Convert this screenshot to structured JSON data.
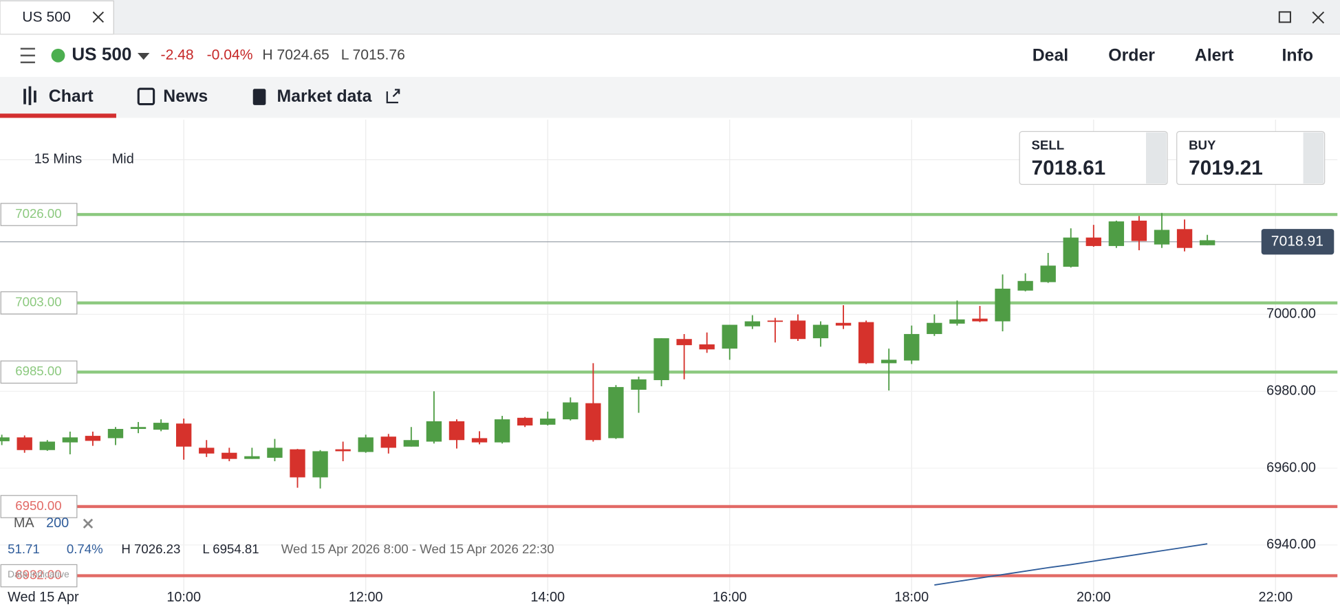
{
  "ui": {
    "window_tab": "US 500",
    "instrument": "US 500",
    "change": "-2.48",
    "change_pct": "-0.04%",
    "high": "H 7024.65",
    "low": "L 7015.76",
    "actions": [
      "Deal",
      "Order",
      "Alert",
      "Info"
    ],
    "tabs": [
      "Chart",
      "News",
      "Market data"
    ],
    "interval": "15 Mins",
    "price_type": "Mid",
    "sell": {
      "label": "SELL",
      "price": "7018.61"
    },
    "buy": {
      "label": "BUY",
      "price": "7019.21"
    },
    "indicator": {
      "name": "MA",
      "period": "200"
    },
    "stats": [
      "51.71",
      "0.74%",
      "H 7026.23",
      "L 6954.81",
      "Wed 15 Apr 2026 8:00 - Wed 15 Apr 2026 22:30"
    ],
    "note": "Data indicative"
  },
  "chart_data": {
    "type": "candlestick",
    "date_label": "Wed 15 Apr",
    "x": [
      "08:00",
      "08:15",
      "08:30",
      "08:45",
      "09:00",
      "09:15",
      "09:30",
      "09:45",
      "10:00",
      "10:15",
      "10:30",
      "10:45",
      "11:00",
      "11:15",
      "11:30",
      "11:45",
      "12:00",
      "12:15",
      "12:30",
      "12:45",
      "13:00",
      "13:15",
      "13:30",
      "13:45",
      "14:00",
      "14:15",
      "14:30",
      "14:45",
      "15:00",
      "15:15",
      "15:30",
      "15:45",
      "16:00",
      "16:15",
      "16:30",
      "16:45",
      "17:00",
      "17:15",
      "17:30",
      "17:45",
      "18:00",
      "18:15",
      "18:30",
      "18:45",
      "19:00",
      "19:15",
      "19:30",
      "19:45",
      "20:00",
      "20:15",
      "20:30",
      "20:45",
      "21:00",
      "21:15"
    ],
    "open": [
      6967,
      6968,
      6964.7,
      6966.7,
      6968.4,
      6967.8,
      6970.2,
      6970,
      6971.6,
      6965.3,
      6964,
      6962.4,
      6962.7,
      6964.9,
      6957.6,
      6964.9,
      6964.2,
      6968.2,
      6965.6,
      6966.9,
      6972.2,
      6967.8,
      6966.7,
      6973.1,
      6971.3,
      6972.7,
      6976.9,
      6967.8,
      6980.4,
      6982.9,
      6993.6,
      6992.2,
      6991.1,
      6996.9,
      6998.4,
      6998.4,
      6993.8,
      6997.8,
      6998,
      6987.3,
      6988,
      6994.9,
      6997.6,
      6998.9,
      6998.2,
      7006.2,
      7008.4,
      7012.4,
      7020,
      7017.8,
      7024.4,
      7018.2,
      7022.2,
      7018
    ],
    "high": [
      6968.7,
      6968.5,
      6967.3,
      6969.5,
      6969.5,
      6970.7,
      6972,
      6972.7,
      6972.9,
      6967.3,
      6965.3,
      6965.3,
      6967.6,
      6965,
      6964.7,
      6966.9,
      6968.7,
      6968.9,
      6970.7,
      6980,
      6972.7,
      6969.6,
      6973.6,
      6973.3,
      6974.7,
      6978.4,
      6987.3,
      6981.6,
      6983.8,
      6993.8,
      6994.9,
      6995.3,
      6997.3,
      6999.8,
      6999.1,
      7000,
      6998.2,
      7002.4,
      6998.4,
      6991.1,
      6997.1,
      7000,
      7003.6,
      7002.2,
      7010.4,
      7010.7,
      7016,
      7022.4,
      7023.3,
      7024.4,
      7025.6,
      7026.4,
      7024.7,
      7020.7
    ],
    "low": [
      6966,
      6964,
      6964.5,
      6963.6,
      6965.8,
      6966,
      6969.1,
      6969.6,
      6962.2,
      6962.9,
      6961.8,
      6962.4,
      6961.8,
      6954.9,
      6954.7,
      6961.8,
      6964,
      6963.8,
      6965.6,
      6966.4,
      6965.1,
      6966.2,
      6966.4,
      6970.7,
      6971.1,
      6972.4,
      6966.9,
      6967.6,
      6974.4,
      6981.3,
      6983.1,
      6990,
      6988.2,
      6996.2,
      6992.7,
      6993.1,
      6991.6,
      6996.2,
      6987.1,
      6980.2,
      6987.1,
      6994.4,
      6997.1,
      6998,
      6995.6,
      7006,
      7008.2,
      7012.2,
      7017.6,
      7017.3,
      7016.7,
      7017.3,
      7016.4,
      7018
    ],
    "close": [
      6968,
      6964.7,
      6966.9,
      6968,
      6967.1,
      6970.2,
      6970.7,
      6971.8,
      6965.6,
      6963.8,
      6962.4,
      6963.1,
      6965.3,
      6957.6,
      6964.4,
      6964.4,
      6968,
      6965.3,
      6967.3,
      6972.2,
      6967.3,
      6966.7,
      6972.7,
      6971.1,
      6972.9,
      6977.1,
      6967.3,
      6981.1,
      6983.1,
      6993.8,
      6992,
      6990.9,
      6997.3,
      6998.2,
      6998.2,
      6993.6,
      6997.3,
      6997.1,
      6987.3,
      6988.2,
      6994.9,
      6997.8,
      6998.7,
      6998.2,
      7006.7,
      7008.7,
      7012.7,
      7020,
      7017.8,
      7024.2,
      7019.1,
      7022,
      7017.3,
      7019.3
    ],
    "up_color": "#4f9d45",
    "down_color": "#d6322c",
    "ma": {
      "color": "#2f5c9a",
      "values": [
        null,
        null,
        null,
        null,
        null,
        null,
        null,
        null,
        null,
        null,
        null,
        null,
        null,
        null,
        null,
        null,
        null,
        null,
        null,
        null,
        null,
        null,
        null,
        null,
        null,
        null,
        null,
        null,
        null,
        null,
        null,
        null,
        null,
        null,
        null,
        null,
        null,
        null,
        null,
        null,
        null,
        6929.6,
        6930.5,
        6931.4,
        6932.3,
        6933.2,
        6934.1,
        6934.9,
        6935.8,
        6936.7,
        6937.6,
        6938.5,
        6939.4,
        6940.3
      ]
    },
    "levels": [
      {
        "value": 7026,
        "label": "7026.00",
        "color": "#8cc97f"
      },
      {
        "value": 7003,
        "label": "7003.00",
        "color": "#8cc97f"
      },
      {
        "value": 6985,
        "label": "6985.00",
        "color": "#8cc97f"
      },
      {
        "value": 6950,
        "label": "6950.00",
        "color": "#e26a66"
      },
      {
        "value": 6932,
        "label": "6932.00",
        "color": "#e26a66"
      }
    ],
    "current_price": 7018.91,
    "xlim": [
      7.98,
      22.68
    ],
    "ylim": [
      6924.9,
      7050.7
    ],
    "xticks": [
      {
        "value": 10,
        "label": "10:00"
      },
      {
        "value": 12,
        "label": "12:00"
      },
      {
        "value": 14,
        "label": "14:00"
      },
      {
        "value": 16,
        "label": "16:00"
      },
      {
        "value": 18,
        "label": "18:00"
      },
      {
        "value": 20,
        "label": "20:00"
      },
      {
        "value": 22,
        "label": "22:00"
      }
    ],
    "yticks": [
      {
        "value": 6940,
        "label": "6940.00"
      },
      {
        "value": 6960,
        "label": "6960.00"
      },
      {
        "value": 6980,
        "label": "6980.00"
      },
      {
        "value": 7000,
        "label": "7000.00"
      }
    ],
    "grid": true
  }
}
